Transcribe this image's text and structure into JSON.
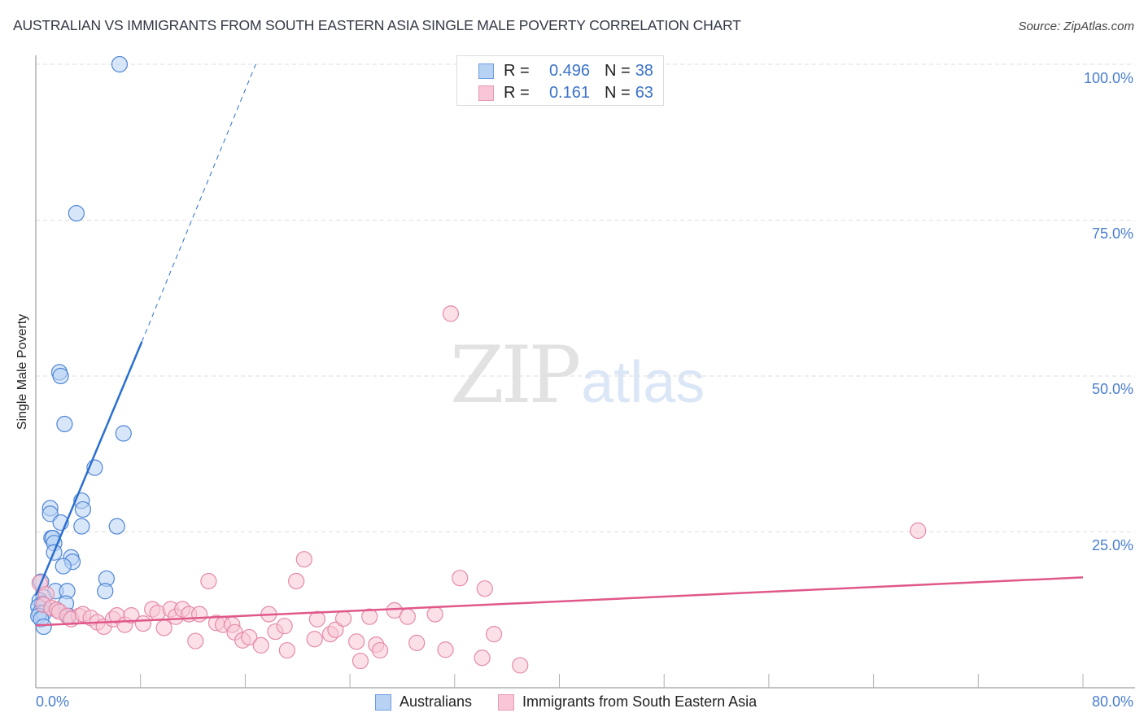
{
  "header": {
    "title": "AUSTRALIAN VS IMMIGRANTS FROM SOUTH EASTERN ASIA SINGLE MALE POVERTY CORRELATION CHART",
    "source": "Source: ZipAtlas.com"
  },
  "legend_top": {
    "rows": [
      {
        "r_label": "R =",
        "r_value": "0.496",
        "n_label": "N =",
        "n_value": "38"
      },
      {
        "r_label": "R =",
        "r_value": "0.161",
        "n_label": "N =",
        "n_value": "63"
      }
    ]
  },
  "axes": {
    "y_label": "Single Male Poverty",
    "y_ticks": [
      "100.0%",
      "75.0%",
      "50.0%",
      "25.0%"
    ],
    "x_min_label": "0.0%",
    "x_max_label": "80.0%"
  },
  "legend_bottom": {
    "items": [
      {
        "label": "Australians"
      },
      {
        "label": "Immigrants from South Eastern Asia"
      }
    ]
  },
  "watermark": {
    "zip": "ZIP",
    "atlas": "atlas"
  },
  "colors": {
    "blue_fill": "#b8d2f4",
    "blue_stroke": "#4f86d6",
    "blue_line": "#2b6fd0",
    "pink_fill": "#f8c6d6",
    "pink_stroke": "#e58aa8",
    "pink_line": "#e0588a",
    "tick_label": "#4a7ed0",
    "grid": "#dddddd"
  },
  "chart_data": {
    "type": "scatter",
    "title": "AUSTRALIAN VS IMMIGRANTS FROM SOUTH EASTERN ASIA SINGLE MALE POVERTY CORRELATION CHART",
    "xlabel": "",
    "ylabel": "Single Male Poverty",
    "xlim": [
      0,
      80
    ],
    "ylim": [
      0,
      100
    ],
    "x_tick_labels": [
      "0.0%",
      "80.0%"
    ],
    "y_tick_labels": [
      "25.0%",
      "50.0%",
      "75.0%",
      "100.0%"
    ],
    "grid": "horizontal dashed",
    "legend_position": "top-center and bottom",
    "series": [
      {
        "name": "Australians",
        "R": 0.496,
        "N": 38,
        "color": "#4f86d6",
        "trend": {
          "x0": 0,
          "y0": 14.8,
          "x1": 8.1,
          "y1": 55.5,
          "dashed_extension_to": [
            16.8,
            100
          ]
        },
        "points": [
          [
            6.4,
            100.0
          ],
          [
            3.1,
            76.1
          ],
          [
            1.8,
            50.6
          ],
          [
            1.9,
            50.0
          ],
          [
            2.2,
            42.3
          ],
          [
            6.7,
            40.8
          ],
          [
            4.5,
            35.3
          ],
          [
            3.5,
            30.0
          ],
          [
            3.6,
            28.6
          ],
          [
            1.1,
            28.8
          ],
          [
            1.1,
            27.9
          ],
          [
            1.9,
            26.5
          ],
          [
            3.5,
            25.9
          ],
          [
            6.2,
            25.9
          ],
          [
            1.2,
            24.0
          ],
          [
            1.3,
            24.0
          ],
          [
            1.4,
            23.2
          ],
          [
            1.4,
            21.7
          ],
          [
            2.7,
            20.9
          ],
          [
            2.8,
            20.2
          ],
          [
            2.1,
            19.5
          ],
          [
            5.4,
            17.5
          ],
          [
            0.4,
            17.0
          ],
          [
            5.3,
            15.5
          ],
          [
            1.5,
            15.5
          ],
          [
            2.4,
            15.5
          ],
          [
            0.6,
            14.5
          ],
          [
            0.3,
            14.0
          ],
          [
            0.5,
            13.5
          ],
          [
            2.3,
            13.5
          ],
          [
            0.2,
            13.0
          ],
          [
            1.6,
            12.5
          ],
          [
            0.3,
            12.0
          ],
          [
            0.6,
            12.0
          ],
          [
            2.5,
            11.5
          ],
          [
            0.2,
            11.5
          ],
          [
            0.4,
            11.0
          ],
          [
            0.6,
            9.8
          ]
        ]
      },
      {
        "name": "Immigrants from South Eastern Asia",
        "R": 0.161,
        "N": 63,
        "color": "#e58aa8",
        "trend": {
          "x0": 0,
          "y0": 10.0,
          "x1": 80,
          "y1": 17.7
        },
        "points": [
          [
            31.7,
            60.0
          ],
          [
            67.4,
            25.2
          ],
          [
            20.5,
            20.6
          ],
          [
            13.2,
            17.1
          ],
          [
            19.9,
            17.1
          ],
          [
            32.4,
            17.6
          ],
          [
            34.3,
            15.9
          ],
          [
            0.3,
            16.8
          ],
          [
            0.8,
            15.0
          ],
          [
            0.6,
            13.3
          ],
          [
            1.2,
            12.8
          ],
          [
            1.6,
            12.5
          ],
          [
            1.8,
            12.2
          ],
          [
            2.4,
            11.5
          ],
          [
            3.3,
            11.5
          ],
          [
            2.7,
            11.0
          ],
          [
            3.6,
            11.8
          ],
          [
            4.2,
            11.2
          ],
          [
            4.7,
            10.5
          ],
          [
            5.2,
            9.8
          ],
          [
            5.9,
            11.0
          ],
          [
            6.2,
            11.6
          ],
          [
            6.8,
            10.1
          ],
          [
            7.3,
            11.6
          ],
          [
            8.2,
            10.3
          ],
          [
            8.9,
            12.6
          ],
          [
            9.3,
            12.0
          ],
          [
            9.8,
            9.6
          ],
          [
            10.3,
            12.6
          ],
          [
            10.7,
            11.4
          ],
          [
            11.2,
            12.6
          ],
          [
            11.7,
            11.8
          ],
          [
            12.5,
            11.8
          ],
          [
            12.2,
            7.5
          ],
          [
            13.8,
            10.4
          ],
          [
            14.3,
            10.1
          ],
          [
            15.0,
            10.1
          ],
          [
            15.2,
            8.9
          ],
          [
            15.8,
            7.6
          ],
          [
            16.3,
            8.1
          ],
          [
            17.2,
            6.8
          ],
          [
            17.8,
            11.8
          ],
          [
            18.3,
            9.0
          ],
          [
            19.0,
            9.9
          ],
          [
            19.2,
            6.0
          ],
          [
            21.3,
            7.8
          ],
          [
            21.5,
            11.0
          ],
          [
            22.5,
            8.6
          ],
          [
            22.9,
            9.3
          ],
          [
            23.5,
            11.1
          ],
          [
            24.5,
            7.4
          ],
          [
            24.8,
            4.3
          ],
          [
            25.5,
            11.4
          ],
          [
            26.0,
            6.9
          ],
          [
            26.3,
            6.0
          ],
          [
            27.4,
            12.4
          ],
          [
            28.4,
            11.4
          ],
          [
            29.1,
            7.2
          ],
          [
            30.5,
            11.8
          ],
          [
            31.3,
            6.1
          ],
          [
            34.1,
            4.8
          ],
          [
            35.0,
            8.6
          ],
          [
            37.0,
            3.6
          ]
        ]
      }
    ]
  }
}
